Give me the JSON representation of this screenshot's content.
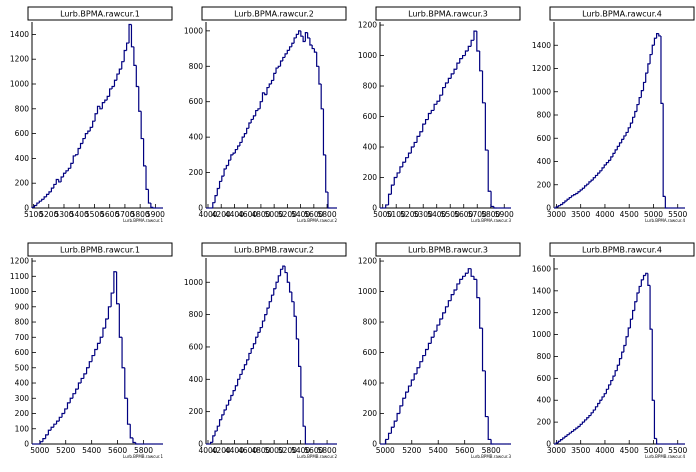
{
  "chart_data": [
    {
      "type": "histogram",
      "title": "Lurb.BPMA.rawcur.1",
      "xlabel": "Lurb.BPMA.rawcur.1",
      "tick_labels_x": [
        "5100",
        "5200",
        "5300",
        "5400",
        "5500",
        "5600",
        "5700",
        "5800",
        "5900"
      ],
      "xlim": [
        5090,
        5950
      ],
      "ylim": [
        0,
        1500
      ],
      "yticks": [
        0,
        200,
        400,
        600,
        800,
        1000,
        1200,
        1400
      ],
      "values": [
        5,
        20,
        40,
        55,
        70,
        90,
        110,
        130,
        160,
        190,
        230,
        210,
        250,
        280,
        300,
        320,
        360,
        420,
        430,
        480,
        520,
        560,
        600,
        620,
        650,
        700,
        760,
        820,
        800,
        850,
        870,
        900,
        960,
        980,
        1030,
        1080,
        1120,
        1180,
        1270,
        1330,
        1480,
        1300,
        1150,
        980,
        780,
        560,
        340,
        150,
        40,
        5,
        0,
        0,
        0,
        0
      ]
    },
    {
      "type": "histogram",
      "title": "Lurb.BPMA.rawcur.2",
      "xlabel": "Lurb.BPMA.rawcur.2",
      "tick_labels_x": [
        "4000",
        "4200",
        "4400",
        "4600",
        "4800",
        "5000",
        "5200",
        "5400",
        "5600",
        "5800"
      ],
      "xlim": [
        3970,
        5950
      ],
      "ylim": [
        0,
        1050
      ],
      "yticks": [
        0,
        200,
        400,
        600,
        800,
        1000
      ],
      "values": [
        0,
        0,
        0,
        30,
        70,
        110,
        150,
        180,
        220,
        240,
        270,
        300,
        310,
        330,
        350,
        370,
        400,
        420,
        450,
        480,
        500,
        520,
        550,
        560,
        600,
        650,
        640,
        680,
        700,
        720,
        760,
        790,
        800,
        830,
        850,
        870,
        890,
        910,
        930,
        960,
        980,
        1000,
        970,
        940,
        990,
        960,
        920,
        900,
        880,
        800,
        700,
        560,
        300,
        90,
        0,
        0,
        0,
        0
      ]
    },
    {
      "type": "histogram",
      "title": "Lurb.BPMA.rawcur.3",
      "xlabel": "Lurb.BPMA.rawcur.3",
      "tick_labels_x": [
        "5000",
        "5100",
        "5200",
        "5300",
        "5400",
        "5500",
        "5600",
        "5700",
        "5800",
        "5900"
      ],
      "xlim": [
        4980,
        5950
      ],
      "ylim": [
        0,
        1220
      ],
      "yticks": [
        0,
        200,
        400,
        600,
        800,
        1000,
        1200
      ],
      "values": [
        0,
        0,
        20,
        90,
        150,
        200,
        230,
        270,
        300,
        330,
        360,
        400,
        430,
        470,
        500,
        550,
        580,
        620,
        640,
        680,
        700,
        740,
        790,
        820,
        850,
        880,
        910,
        950,
        980,
        1000,
        1030,
        1060,
        1100,
        1160,
        1030,
        900,
        690,
        380,
        110,
        10,
        0,
        0,
        0,
        0,
        0,
        0
      ]
    },
    {
      "type": "histogram",
      "title": "Lurb.BPMA.rawcur.4",
      "xlabel": "Lurb.BPMA.rawcur.4",
      "tick_labels_x": [
        "3000",
        "3500",
        "4000",
        "4500",
        "5000",
        "5500"
      ],
      "xlim": [
        2950,
        5650
      ],
      "ylim": [
        0,
        1600
      ],
      "yticks": [
        0,
        200,
        400,
        600,
        800,
        1000,
        1200,
        1400
      ],
      "values": [
        0,
        10,
        20,
        30,
        45,
        60,
        75,
        90,
        105,
        115,
        125,
        140,
        155,
        170,
        190,
        205,
        225,
        240,
        260,
        280,
        300,
        320,
        345,
        370,
        390,
        410,
        440,
        470,
        500,
        530,
        560,
        590,
        620,
        650,
        690,
        730,
        780,
        830,
        890,
        950,
        1010,
        1080,
        1160,
        1240,
        1320,
        1400,
        1460,
        1500,
        1480,
        900,
        100,
        0,
        0,
        0,
        0,
        0,
        0,
        0,
        0,
        0
      ]
    },
    {
      "type": "histogram",
      "title": "Lurb.BPMB.rawcur.1",
      "xlabel": "Lurb.BPMB.rawcur.1",
      "tick_labels_x": [
        "5000",
        "5200",
        "5400",
        "5600",
        "5800"
      ],
      "xlim": [
        4940,
        5950
      ],
      "ylim": [
        0,
        1220
      ],
      "yticks": [
        0,
        100,
        200,
        300,
        400,
        500,
        600,
        700,
        800,
        900,
        1000,
        1100,
        1200
      ],
      "values": [
        0,
        0,
        0,
        15,
        35,
        60,
        90,
        110,
        130,
        150,
        175,
        200,
        230,
        270,
        300,
        330,
        360,
        400,
        430,
        460,
        500,
        540,
        580,
        620,
        660,
        700,
        760,
        820,
        900,
        990,
        1130,
        920,
        700,
        500,
        300,
        130,
        40,
        10,
        0,
        0,
        0,
        0,
        0,
        0,
        0,
        0,
        0,
        0
      ]
    },
    {
      "type": "histogram",
      "title": "Lurb.BPMB.rawcur.2",
      "xlabel": "Lurb.BPMB.rawcur.2",
      "tick_labels_x": [
        "4000",
        "4200",
        "4400",
        "4600",
        "4800",
        "5000",
        "5200",
        "5400",
        "5600",
        "5800"
      ],
      "xlim": [
        3970,
        5950
      ],
      "ylim": [
        0,
        1150
      ],
      "yticks": [
        0,
        200,
        400,
        600,
        800,
        1000
      ],
      "values": [
        0,
        0,
        10,
        50,
        80,
        110,
        150,
        180,
        210,
        240,
        270,
        300,
        330,
        360,
        400,
        430,
        460,
        490,
        520,
        560,
        590,
        620,
        660,
        690,
        720,
        760,
        800,
        840,
        880,
        920,
        960,
        1000,
        1040,
        1080,
        1100,
        1060,
        1000,
        940,
        880,
        790,
        650,
        480,
        290,
        110,
        0,
        0,
        0,
        0,
        0,
        0,
        0,
        0,
        0,
        0,
        0,
        0,
        0,
        0
      ]
    },
    {
      "type": "histogram",
      "title": "Lurb.BPMB.rawcur.3",
      "xlabel": "Lurb.BPMB.rawcur.3",
      "tick_labels_x": [
        "5000",
        "5200",
        "5400",
        "5600",
        "5800"
      ],
      "xlim": [
        4960,
        5950
      ],
      "ylim": [
        0,
        1220
      ],
      "yticks": [
        0,
        200,
        400,
        600,
        800,
        1000,
        1200
      ],
      "values": [
        0,
        0,
        30,
        70,
        110,
        150,
        200,
        250,
        300,
        340,
        380,
        420,
        460,
        500,
        540,
        580,
        620,
        660,
        700,
        740,
        780,
        820,
        860,
        900,
        940,
        980,
        1010,
        1050,
        1080,
        1100,
        1120,
        1150,
        1100,
        1080,
        960,
        760,
        480,
        180,
        30,
        0,
        0,
        0,
        0,
        0,
        0,
        0
      ]
    },
    {
      "type": "histogram",
      "title": "Lurb.BPMB.rawcur.4",
      "xlabel": "Lurb.BPMB.rawcur.4",
      "tick_labels_x": [
        "3000",
        "3500",
        "4000",
        "4500",
        "5000",
        "5500"
      ],
      "xlim": [
        2950,
        5650
      ],
      "ylim": [
        0,
        1700
      ],
      "yticks": [
        0,
        200,
        400,
        600,
        800,
        1000,
        1200,
        1400,
        1600
      ],
      "values": [
        0,
        10,
        25,
        40,
        55,
        70,
        85,
        100,
        115,
        130,
        145,
        160,
        180,
        200,
        220,
        240,
        260,
        285,
        310,
        340,
        370,
        400,
        430,
        460,
        500,
        540,
        580,
        620,
        670,
        720,
        780,
        840,
        900,
        980,
        1060,
        1140,
        1220,
        1300,
        1380,
        1440,
        1500,
        1540,
        1560,
        1450,
        1050,
        400,
        50,
        0,
        0,
        0,
        0,
        0,
        0,
        0,
        0,
        0,
        0,
        0,
        0,
        0
      ]
    }
  ]
}
